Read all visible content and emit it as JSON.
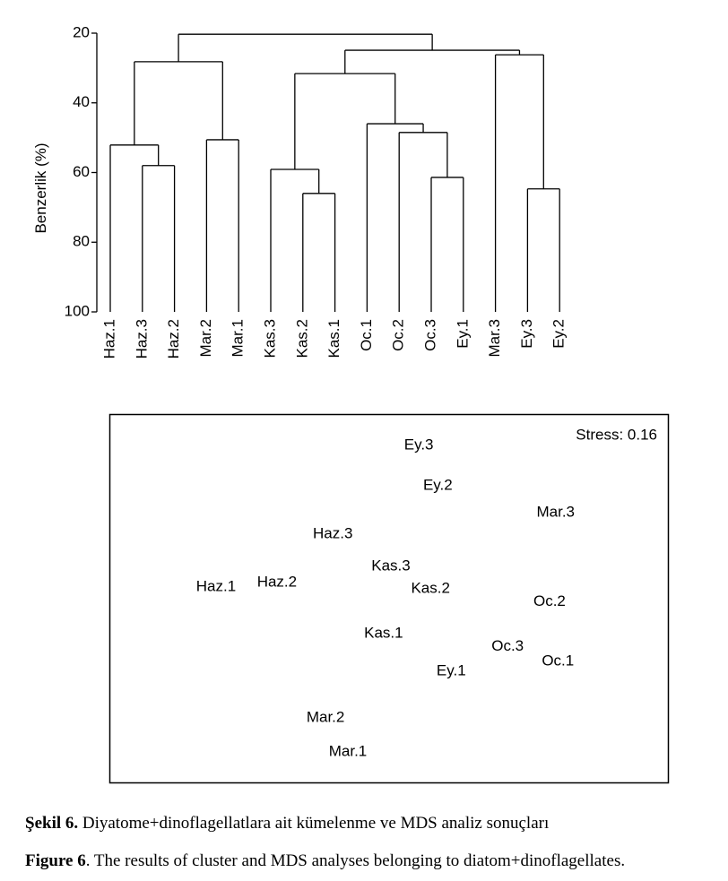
{
  "chart_data": [
    {
      "type": "dendrogram",
      "ylabel": "Benzerlik (%)",
      "ylim": [
        100,
        20
      ],
      "yticks": [
        20,
        40,
        60,
        80,
        100
      ],
      "leaves": [
        "Haz.1",
        "Haz.3",
        "Haz.2",
        "Mar.2",
        "Mar.1",
        "Kas.3",
        "Kas.2",
        "Kas.1",
        "Oc.1",
        "Oc.2",
        "Oc.3",
        "Ey.1",
        "Mar.3",
        "Ey.3",
        "Ey.2"
      ],
      "merges": [
        {
          "nodes": [
            1,
            2
          ],
          "height": 58.0
        },
        {
          "nodes": [
            0,
            15
          ],
          "height": 52.1
        },
        {
          "nodes": [
            3,
            4
          ],
          "height": 50.6
        },
        {
          "nodes": [
            16,
            17
          ],
          "height": 28.2
        },
        {
          "nodes": [
            6,
            7
          ],
          "height": 66.0
        },
        {
          "nodes": [
            5,
            19
          ],
          "height": 59.1
        },
        {
          "nodes": [
            10,
            11
          ],
          "height": 61.4
        },
        {
          "nodes": [
            9,
            21
          ],
          "height": 48.5
        },
        {
          "nodes": [
            8,
            22
          ],
          "height": 46.0
        },
        {
          "nodes": [
            20,
            23
          ],
          "height": 31.6
        },
        {
          "nodes": [
            13,
            14
          ],
          "height": 64.7
        },
        {
          "nodes": [
            12,
            25
          ],
          "height": 26.2
        },
        {
          "nodes": [
            24,
            26
          ],
          "height": 24.9
        },
        {
          "nodes": [
            18,
            27
          ],
          "height": 20.3
        }
      ],
      "color": "#000000"
    },
    {
      "type": "scatter",
      "annotation": "Stress: 0.16",
      "xlim": [
        0,
        100
      ],
      "ylim": [
        0,
        100
      ],
      "labels": [
        "Ey.3",
        "Ey.2",
        "Mar.3",
        "Haz.3",
        "Kas.3",
        "Haz.1",
        "Haz.2",
        "Kas.2",
        "Oc.2",
        "Kas.1",
        "Oc.3",
        "Oc.1",
        "Ey.1",
        "Mar.2",
        "Mar.1"
      ],
      "x": [
        55.4,
        58.8,
        79.9,
        40.0,
        50.4,
        19.1,
        30.0,
        57.5,
        78.8,
        49.1,
        71.3,
        80.3,
        61.2,
        38.7,
        42.7
      ],
      "y": [
        91.5,
        80.5,
        73.2,
        67.4,
        58.6,
        53.0,
        54.3,
        52.6,
        49.0,
        40.4,
        36.9,
        32.8,
        30.2,
        17.5,
        8.3
      ]
    }
  ],
  "caption": {
    "tr_label": "Şekil 6.",
    "tr_text": " Diyatome+dinoflagellatlara ait kümelenme ve MDS analiz sonuçları",
    "en_label": "Figure 6",
    "en_text": ". The results of cluster and MDS analyses belonging to diatom+dinoflagellates."
  }
}
